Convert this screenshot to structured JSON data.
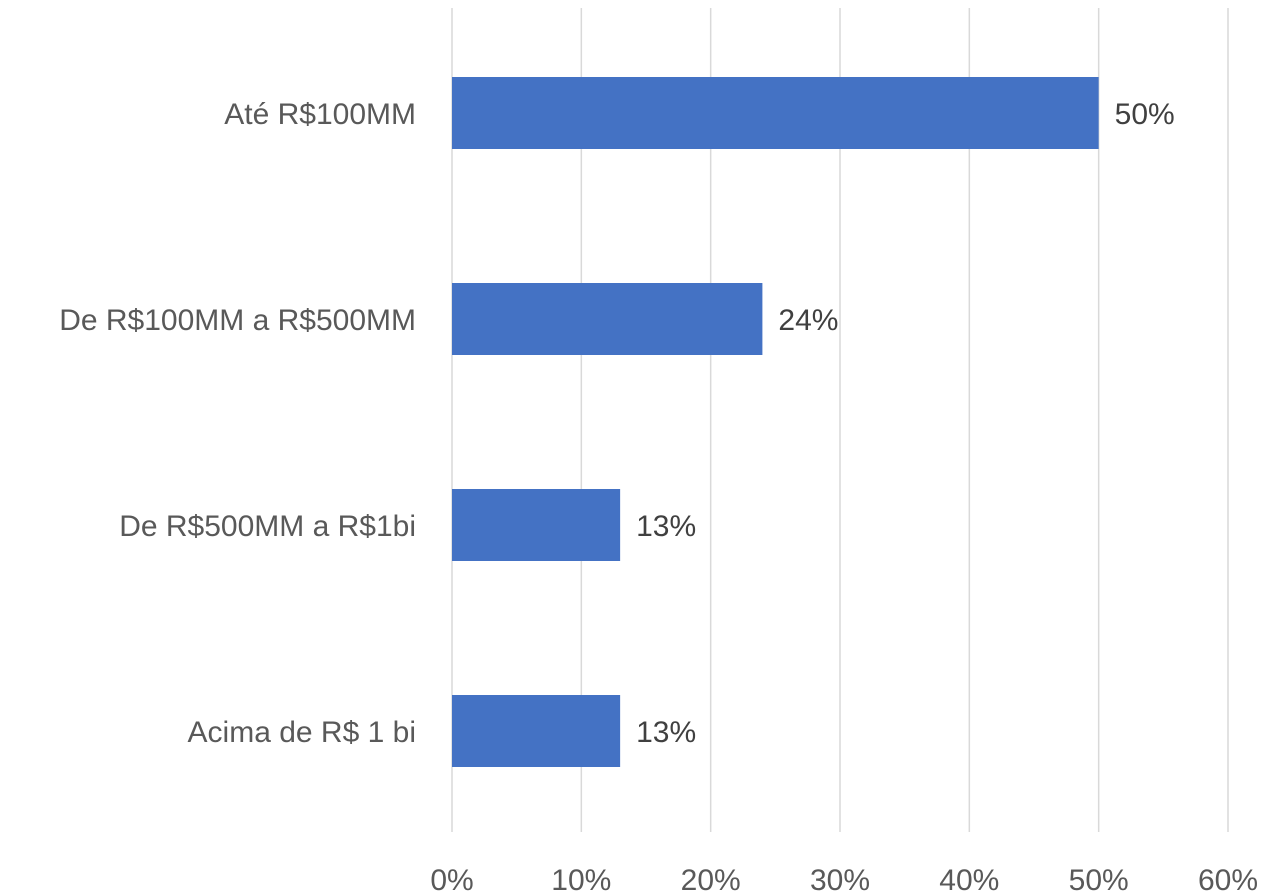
{
  "chart_data": {
    "type": "bar",
    "orientation": "horizontal",
    "categories": [
      "Até R$100MM",
      "De R$100MM a R$500MM",
      "De R$500MM a R$1bi",
      "Acima de R$ 1 bi"
    ],
    "values": [
      50,
      24,
      13,
      13
    ],
    "data_labels": [
      "50%",
      "24%",
      "13%",
      "13%"
    ],
    "xlim": [
      0,
      60
    ],
    "xticks": [
      0,
      10,
      20,
      30,
      40,
      50,
      60
    ],
    "xtick_labels": [
      "0%",
      "10%",
      "20%",
      "30%",
      "40%",
      "50%",
      "60%"
    ],
    "title": "",
    "xlabel": "",
    "ylabel": "",
    "grid": "vertical",
    "legend": "none",
    "colors": {
      "bar": "#4472C4",
      "grid": "#D9D9D9",
      "label": "#595959",
      "data_label": "#404040"
    }
  }
}
